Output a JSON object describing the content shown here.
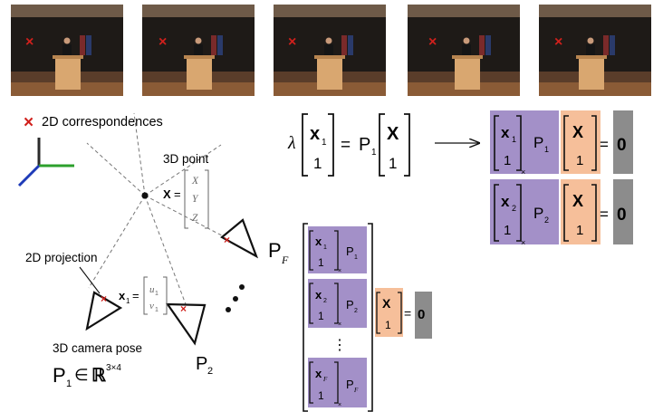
{
  "colors": {
    "marker": "#d0201c",
    "purple_block": "#a390c8",
    "orange_block": "#f6bf9a",
    "gray_block": "#8c8c8c",
    "axis_x": "#2ca02c",
    "axis_y": "#2a2a2a",
    "axis_z": "#1f3bb8",
    "stage_wall": "#1e1a17",
    "podium": "#d9a770"
  },
  "frames": [
    {
      "marker": "x"
    },
    {
      "marker": "x"
    },
    {
      "marker": "x"
    },
    {
      "marker": "x"
    },
    {
      "marker": "x"
    }
  ],
  "legend": {
    "marker_symbol": "×",
    "text": "2D correspondences"
  },
  "labels": {
    "point_3d": "3D point",
    "projection_2d": "2D projection",
    "camera_pose": "3D camera pose"
  },
  "point_vector": {
    "lhs": "X",
    "eq": "=",
    "entries": [
      "X",
      "Y",
      "Z"
    ]
  },
  "proj_vector": {
    "lhs": "x",
    "lhs_sub": "1",
    "eq": "=",
    "entries": [
      "u",
      "v"
    ],
    "entry_sub": "1"
  },
  "cameras": {
    "p1": {
      "letter": "P",
      "sub": "1",
      "in": "∈",
      "space": "ℝ",
      "sup": "3×4"
    },
    "p2": {
      "letter": "P",
      "sub": "2"
    },
    "pf": {
      "letter": "P",
      "sub": "F"
    }
  },
  "equation": {
    "lambda": "λ",
    "x": "x",
    "x_sub": "1",
    "one": "1",
    "eq": "=",
    "P": "P",
    "P_sub": "1",
    "X": "X"
  },
  "arrow": "→",
  "stack_rows": [
    {
      "x": "x",
      "x_sub": "1",
      "one": "1",
      "cross": "×",
      "P": "P",
      "P_sub": "1",
      "X": "X",
      "eq": "=",
      "zero": "0"
    },
    {
      "x": "x",
      "x_sub": "2",
      "one": "1",
      "cross": "×",
      "P": "P",
      "P_sub": "2",
      "X": "X",
      "eq": "=",
      "zero": "0"
    }
  ],
  "big_matrix": {
    "rows": [
      {
        "x": "x",
        "x_sub": "1",
        "one": "1",
        "cross": "×",
        "P": "P",
        "P_sub": "1"
      },
      {
        "x": "x",
        "x_sub": "2",
        "one": "1",
        "cross": "×",
        "P": "P",
        "P_sub": "2"
      },
      {
        "x": "x",
        "x_sub": "F",
        "one": "1",
        "cross": "×",
        "P": "P",
        "P_sub": "F"
      }
    ],
    "dots": "⋮",
    "X": "X",
    "one": "1",
    "eq": "=",
    "zero": "0"
  }
}
